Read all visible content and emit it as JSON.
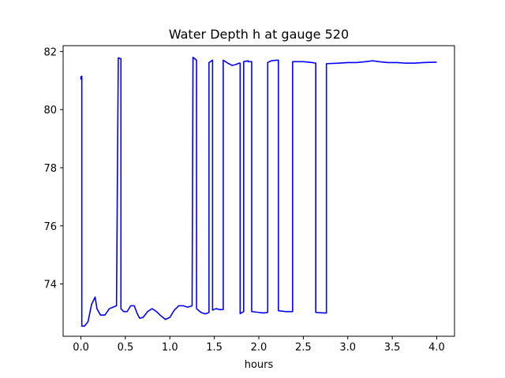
{
  "chart_data": {
    "type": "line",
    "title": "Water Depth h at gauge 520",
    "xlabel": "hours",
    "ylabel": "",
    "xlim": [
      -0.2,
      4.2
    ],
    "ylim": [
      72.2,
      82.2
    ],
    "xticks": [
      0.0,
      0.5,
      1.0,
      1.5,
      2.0,
      2.5,
      3.0,
      3.5,
      4.0
    ],
    "xtick_labels": [
      "0.0",
      "0.5",
      "1.0",
      "1.5",
      "2.0",
      "2.5",
      "3.0",
      "3.5",
      "4.0"
    ],
    "yticks": [
      74,
      76,
      78,
      80,
      82
    ],
    "ytick_labels": [
      "74",
      "76",
      "78",
      "80",
      "82"
    ],
    "grid": false,
    "series": [
      {
        "color": "#0000ff",
        "x": [
          0.0,
          0.0,
          0.01,
          0.01,
          0.04,
          0.08,
          0.12,
          0.16,
          0.18,
          0.22,
          0.27,
          0.32,
          0.36,
          0.4,
          0.42,
          0.42,
          0.45,
          0.45,
          0.48,
          0.52,
          0.56,
          0.6,
          0.63,
          0.66,
          0.7,
          0.75,
          0.8,
          0.85,
          0.9,
          0.95,
          1.0,
          1.05,
          1.1,
          1.15,
          1.2,
          1.25,
          1.26,
          1.26,
          1.3,
          1.3,
          1.35,
          1.4,
          1.44,
          1.44,
          1.48,
          1.48,
          1.52,
          1.56,
          1.6,
          1.6,
          1.65,
          1.7,
          1.74,
          1.78,
          1.79,
          1.79,
          1.83,
          1.83,
          1.88,
          1.88,
          1.9,
          1.92,
          1.92,
          2.0,
          2.05,
          2.1,
          2.1,
          2.14,
          2.2,
          2.22,
          2.22,
          2.3,
          2.38,
          2.38,
          2.5,
          2.6,
          2.64,
          2.64,
          2.74,
          2.76,
          2.76,
          2.9,
          3.0,
          3.1,
          3.2,
          3.28,
          3.35,
          3.45,
          3.55,
          3.65,
          3.75,
          3.85,
          3.95,
          4.0
        ],
        "y": [
          81.15,
          81.05,
          81.15,
          72.55,
          72.55,
          72.7,
          73.3,
          73.55,
          73.15,
          72.93,
          72.93,
          73.15,
          73.2,
          73.25,
          81.78,
          81.78,
          81.75,
          73.15,
          73.05,
          73.05,
          73.25,
          73.25,
          73.0,
          72.82,
          72.85,
          73.05,
          73.15,
          73.05,
          72.9,
          72.78,
          72.85,
          73.1,
          73.25,
          73.25,
          73.2,
          73.25,
          81.8,
          81.8,
          81.7,
          73.15,
          73.02,
          72.97,
          73.02,
          81.62,
          81.7,
          73.1,
          73.15,
          73.12,
          73.12,
          81.7,
          81.6,
          81.52,
          81.55,
          81.6,
          81.6,
          72.98,
          73.05,
          81.65,
          81.68,
          81.65,
          81.65,
          81.65,
          73.05,
          73.02,
          73.0,
          73.02,
          81.62,
          81.68,
          81.7,
          81.7,
          73.08,
          73.05,
          73.05,
          81.65,
          81.65,
          81.62,
          81.6,
          73.02,
          73.0,
          73.0,
          81.58,
          81.6,
          81.62,
          81.62,
          81.65,
          81.68,
          81.65,
          81.62,
          81.62,
          81.6,
          81.6,
          81.62,
          81.63,
          81.63
        ]
      }
    ]
  }
}
